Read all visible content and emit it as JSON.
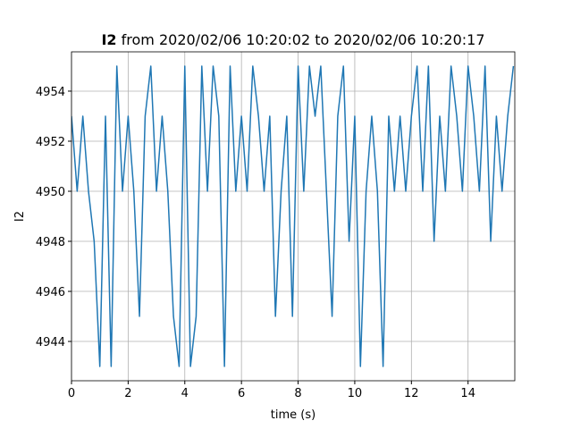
{
  "chart_data": {
    "type": "line",
    "title_bold": "I2",
    "title": "from 2020/02/06 10:20:02 to 2020/02/06 10:20:17",
    "xlabel": "time (s)",
    "ylabel": "I2",
    "color": "#1f77b4",
    "grid": true,
    "xlim": [
      0,
      15.65
    ],
    "ylim": [
      4942.43,
      4955.57
    ],
    "xticks": [
      0,
      2,
      4,
      6,
      8,
      10,
      12,
      14
    ],
    "yticks": [
      4944,
      4946,
      4948,
      4950,
      4952,
      4954
    ],
    "x": [
      0,
      0.2,
      0.4,
      0.6,
      0.8,
      1,
      1.2,
      1.4,
      1.6,
      1.8,
      2,
      2.2,
      2.4,
      2.6,
      2.8,
      3,
      3.2,
      3.4,
      3.6,
      3.8,
      4,
      4.2,
      4.4,
      4.6,
      4.8,
      5,
      5.2,
      5.4,
      5.6,
      5.8,
      6,
      6.2,
      6.4,
      6.6,
      6.8,
      7,
      7.2,
      7.4,
      7.6,
      7.8,
      8,
      8.2,
      8.4,
      8.6,
      8.8,
      9,
      9.2,
      9.4,
      9.6,
      9.8,
      10,
      10.2,
      10.4,
      10.6,
      10.8,
      11,
      11.2,
      11.4,
      11.6,
      11.8,
      12,
      12.2,
      12.4,
      12.6,
      12.8,
      13,
      13.2,
      13.4,
      13.6,
      13.8,
      14,
      14.2,
      14.4,
      14.6,
      14.8,
      15,
      15.2,
      15.4,
      15.6
    ],
    "values": [
      4953,
      4950,
      4953,
      4950,
      4948,
      4943,
      4953,
      4943,
      4955,
      4950,
      4953,
      4950,
      4945,
      4953,
      4955,
      4950,
      4953,
      4950,
      4945,
      4943,
      4955,
      4943,
      4945,
      4955,
      4950,
      4955,
      4953,
      4943,
      4955,
      4950,
      4953,
      4950,
      4955,
      4953,
      4950,
      4953,
      4945,
      4950,
      4953,
      4945,
      4955,
      4950,
      4955,
      4953,
      4955,
      4950,
      4945,
      4953,
      4955,
      4948,
      4953,
      4943,
      4950,
      4953,
      4950,
      4943,
      4953,
      4950,
      4953,
      4950,
      4953,
      4955,
      4950,
      4955,
      4948,
      4953,
      4950,
      4955,
      4953,
      4950,
      4955,
      4953,
      4950,
      4955,
      4948,
      4953,
      4950,
      4953,
      4955
    ]
  }
}
